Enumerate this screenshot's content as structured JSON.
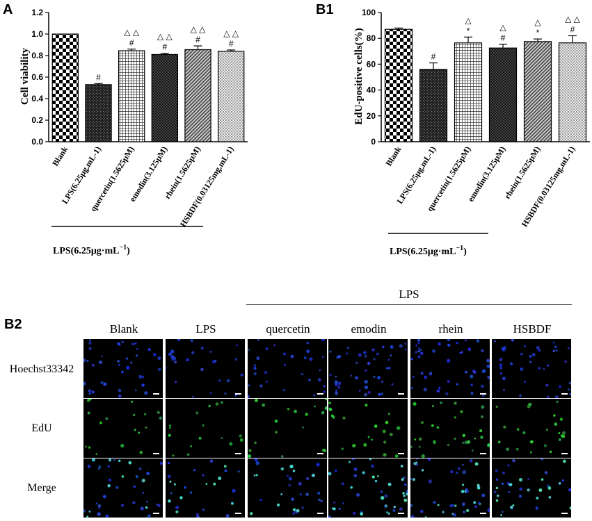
{
  "panels": {
    "A": {
      "letter": "A",
      "ylabel": "Cell viability",
      "group_label_main": "LPS(6.25μg·mL",
      "group_label_sup": "−1",
      "group_label_close": ")"
    },
    "B1": {
      "letter": "B1",
      "ylabel": "EdU-positive cells(%)",
      "group_label_main": "LPS(6.25μg·mL",
      "group_label_sup": "−1",
      "group_label_close": ")"
    },
    "B2": {
      "letter": "B2",
      "group_label": "LPS",
      "columns": [
        "Blank",
        "LPS",
        "quercetin",
        "emodin",
        "rhein",
        "HSBDF"
      ],
      "rows": [
        "Hoechst33342",
        "EdU",
        "Merge"
      ]
    }
  },
  "chart_data": [
    {
      "type": "bar",
      "panel": "A",
      "categories": [
        "Blank",
        "LPS(6.25μg.mL-1)",
        "quercetin(1.5625μM)",
        "emodin(3.125μM)",
        "rhein(1.5625μM)",
        "HSBDF(0.03125mg.mL-1)"
      ],
      "values": [
        1.0,
        0.53,
        0.845,
        0.81,
        0.855,
        0.84
      ],
      "errors": [
        0.0,
        0.01,
        0.015,
        0.012,
        0.035,
        0.012
      ],
      "annotations": [
        "",
        "#",
        "#",
        "#",
        "#",
        "#"
      ],
      "annotations_top": [
        "",
        "",
        "△ △",
        "△ △",
        "△ △",
        "△ △"
      ],
      "ylabel": "Cell viability",
      "ylim": [
        0,
        1.2
      ],
      "yticks": [
        "0.0",
        "0.2",
        "0.4",
        "0.6",
        "0.8",
        "1.0",
        "1.2"
      ],
      "patterns": [
        "checker",
        "dense-dark",
        "grid",
        "crosshatch-dark",
        "diagonal",
        "dots"
      ]
    },
    {
      "type": "bar",
      "panel": "B1",
      "categories": [
        "Blank",
        "LPS(6.25μg.mL-1)",
        "quercetin(1.5625μM)",
        "emodin(3.125μM)",
        "rhein(1.5625μM)",
        "HSBDF(0.03125mg.mL-1)"
      ],
      "values": [
        87,
        56,
        76.5,
        72.5,
        77.5,
        76.5
      ],
      "errors": [
        1.0,
        5.0,
        4.5,
        3.0,
        2.0,
        5.5
      ],
      "annotations": [
        "",
        "#",
        "*",
        "#",
        "*",
        "#"
      ],
      "annotations_top": [
        "",
        "",
        "△",
        "△",
        "△",
        "△ △"
      ],
      "ylabel": "EdU-positive cells(%)",
      "ylim": [
        0,
        100
      ],
      "yticks": [
        "0",
        "20",
        "40",
        "60",
        "80",
        "100"
      ],
      "patterns": [
        "checker",
        "dense-dark",
        "grid",
        "crosshatch-dark",
        "diagonal",
        "dots"
      ]
    }
  ]
}
